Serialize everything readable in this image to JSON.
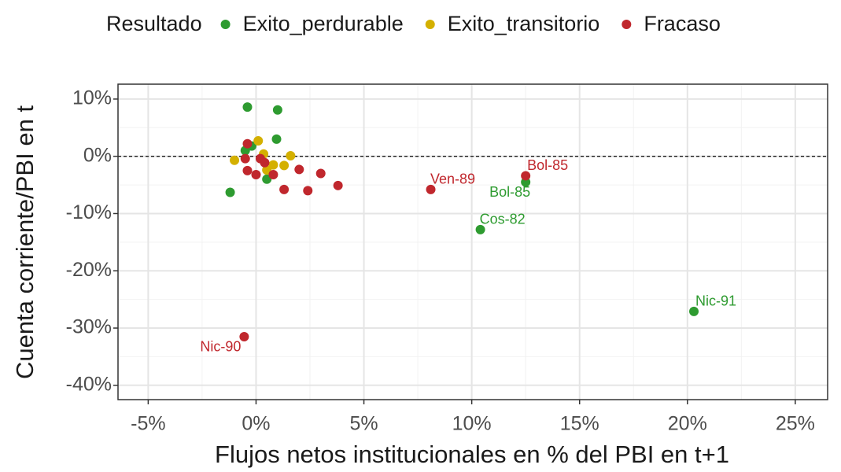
{
  "chart_data": {
    "type": "scatter",
    "x_label": "Flujos netos institucionales en % del PBI en t+1",
    "y_label": "Cuenta corriente/PBI en t",
    "legend_title": "Resultado",
    "legend": "top",
    "grid": true,
    "hline": 0,
    "xlim": [
      -6.4,
      26.5
    ],
    "ylim": [
      -42.5,
      12.6
    ],
    "xticks": [
      {
        "value": -5,
        "label": "-5%"
      },
      {
        "value": 0,
        "label": "0%"
      },
      {
        "value": 5,
        "label": "5%"
      },
      {
        "value": 10,
        "label": "10%"
      },
      {
        "value": 15,
        "label": "15%"
      },
      {
        "value": 20,
        "label": "20%"
      },
      {
        "value": 25,
        "label": "25%"
      }
    ],
    "yticks": [
      {
        "value": -40,
        "label": "-40%"
      },
      {
        "value": -30,
        "label": "-30%"
      },
      {
        "value": -20,
        "label": "-20%"
      },
      {
        "value": -10,
        "label": "-10%"
      },
      {
        "value": 0,
        "label": "0%"
      },
      {
        "value": 10,
        "label": "10%"
      }
    ],
    "series": [
      {
        "name": "Exito_perdurable",
        "color": "#2e9b30",
        "x": [
          -0.4,
          1.0,
          0.95,
          -0.2,
          -0.5,
          -1.2,
          0.5,
          12.5,
          10.4,
          20.3
        ],
        "values": [
          8.6,
          8.1,
          3.0,
          1.8,
          1.0,
          -6.3,
          -4.0,
          -4.5,
          -12.8,
          -27.1
        ],
        "point_labels": [
          null,
          null,
          null,
          null,
          null,
          null,
          null,
          "Bol-85",
          "Cos-82",
          "Nic-91"
        ]
      },
      {
        "name": "Exito_transitorio",
        "color": "#d4b000",
        "x": [
          0.1,
          1.6,
          -1.0,
          0.35,
          0.5,
          0.8,
          1.3
        ],
        "values": [
          2.7,
          0.1,
          -0.7,
          0.4,
          -2.4,
          -1.5,
          -1.6
        ],
        "point_labels": [
          null,
          null,
          null,
          null,
          null,
          null,
          null
        ]
      },
      {
        "name": "Fracaso",
        "color": "#c0272d",
        "x": [
          -0.4,
          -0.5,
          -0.4,
          0.0,
          0.2,
          0.4,
          0.8,
          1.3,
          2.0,
          3.0,
          2.4,
          3.8,
          8.1,
          12.5,
          -0.55
        ],
        "values": [
          2.2,
          -0.4,
          -2.5,
          -3.2,
          -0.4,
          -1.1,
          -3.2,
          -5.8,
          -2.3,
          -3.0,
          -6.0,
          -5.1,
          -5.8,
          -3.4,
          -31.5
        ],
        "point_labels": [
          null,
          null,
          null,
          null,
          null,
          null,
          null,
          null,
          null,
          null,
          null,
          null,
          "Ven-89",
          "Bol-85",
          "Nic-90"
        ]
      }
    ]
  }
}
